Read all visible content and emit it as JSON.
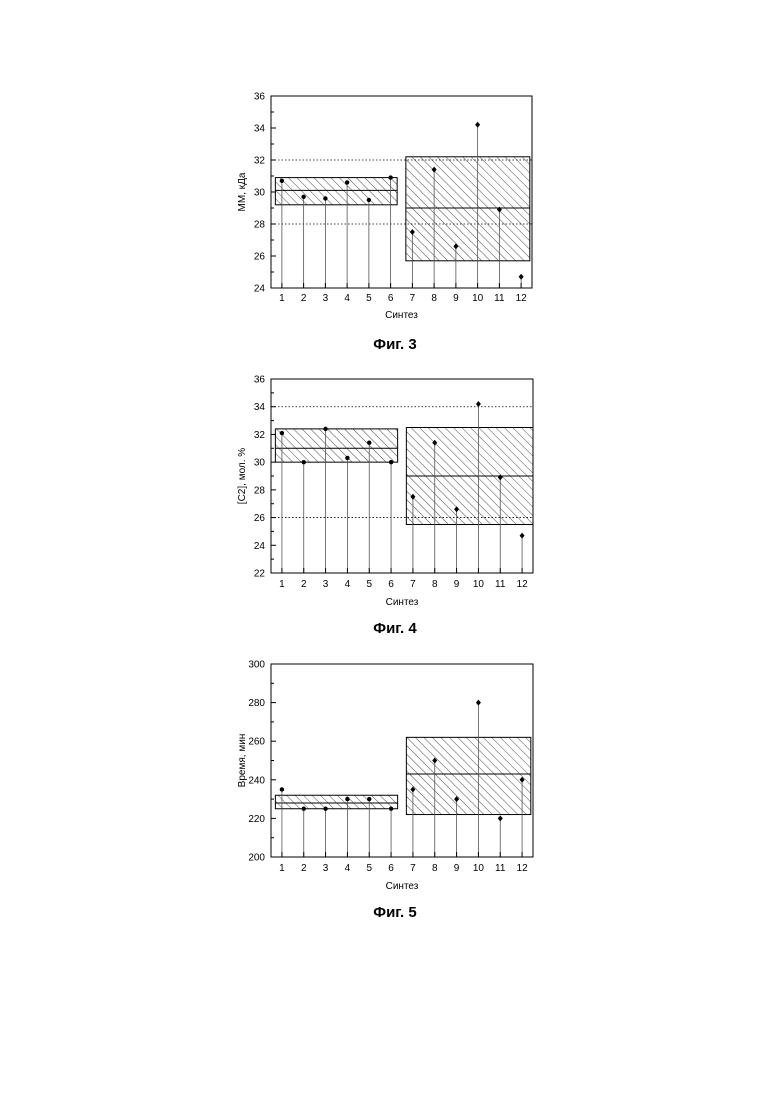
{
  "chart_data": [
    {
      "type": "scatter",
      "caption": "Фиг. 3",
      "xlabel": "Синтез",
      "ylabel": "ММ, кДа",
      "x": [
        1,
        2,
        3,
        4,
        5,
        6,
        7,
        8,
        9,
        10,
        11,
        12
      ],
      "xlim": [
        0.5,
        12.5
      ],
      "ylim": [
        24,
        36
      ],
      "yticks": [
        24,
        26,
        28,
        30,
        32,
        34,
        36
      ],
      "values": [
        30.7,
        29.7,
        29.6,
        30.6,
        29.5,
        30.9,
        27.5,
        31.4,
        26.6,
        34.2,
        28.9,
        24.7
      ],
      "reference_lines": [
        28,
        32
      ],
      "groups": [
        {
          "x_from": 0.7,
          "x_to": 6.3,
          "low": 29.2,
          "high": 30.9,
          "mean": 30.1
        },
        {
          "x_from": 6.7,
          "x_to": 12.4,
          "low": 25.7,
          "high": 32.2,
          "mean": 29.0
        }
      ],
      "grid": false
    },
    {
      "type": "scatter",
      "caption": "Фиг. 4",
      "xlabel": "Синтез",
      "ylabel": "[C2], мол. %",
      "x": [
        1,
        2,
        3,
        4,
        5,
        6,
        7,
        8,
        9,
        10,
        11,
        12
      ],
      "xlim": [
        0.5,
        12.5
      ],
      "ylim": [
        22,
        36
      ],
      "yticks": [
        22,
        24,
        26,
        28,
        30,
        32,
        34,
        36
      ],
      "values": [
        32.1,
        30.0,
        32.4,
        30.3,
        31.4,
        30.0,
        27.5,
        31.4,
        26.6,
        34.2,
        28.9,
        24.7
      ],
      "reference_lines": [
        26,
        34
      ],
      "groups": [
        {
          "x_from": 0.7,
          "x_to": 6.3,
          "low": 30.0,
          "high": 32.4,
          "mean": 31.0
        },
        {
          "x_from": 6.7,
          "x_to": 12.5,
          "low": 25.5,
          "high": 32.5,
          "mean": 29.0
        }
      ],
      "grid": false
    },
    {
      "type": "scatter",
      "caption": "Фиг. 5",
      "xlabel": "Синтез",
      "ylabel": "Время, мин",
      "x": [
        1,
        2,
        3,
        4,
        5,
        6,
        7,
        8,
        9,
        10,
        11,
        12
      ],
      "xlim": [
        0.5,
        12.5
      ],
      "ylim": [
        200,
        300
      ],
      "yticks": [
        200,
        220,
        240,
        260,
        280,
        300
      ],
      "values": [
        235,
        225,
        225,
        230,
        230,
        225,
        235,
        250,
        230,
        280,
        220,
        240
      ],
      "reference_lines": [],
      "groups": [
        {
          "x_from": 0.7,
          "x_to": 6.3,
          "low": 225,
          "high": 232,
          "mean": 228
        },
        {
          "x_from": 6.7,
          "x_to": 12.4,
          "low": 222,
          "high": 262,
          "mean": 243
        }
      ],
      "grid": false
    }
  ]
}
